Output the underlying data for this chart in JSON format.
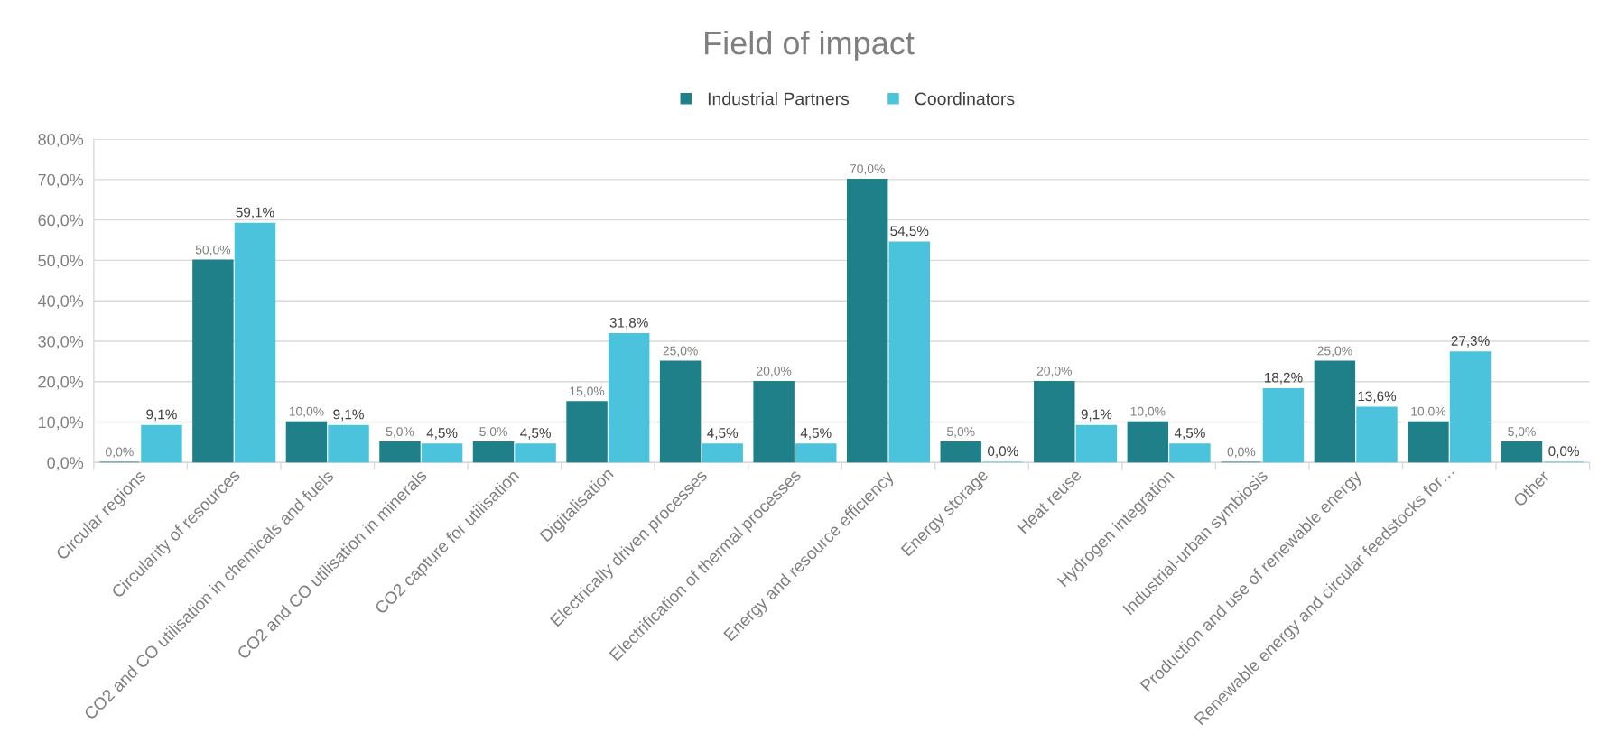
{
  "chart_data": {
    "type": "bar",
    "title": "Field of impact",
    "categories": [
      "Circular regions",
      "Circularity of resources",
      "CO2 and CO utilisation in chemicals and fuels",
      "CO2 and CO utilisation in minerals",
      "CO2 capture for utilisation",
      "Digitalisation",
      "Electrically driven processes",
      "Electrification of thermal processes",
      "Energy and resource efficiency",
      "Energy storage",
      "Heat reuse",
      "Hydrogen integration",
      "Industrial-urban symbiosis",
      "Production and use of renewable energy",
      "Renewable energy and circular feedstocks for…",
      "Other"
    ],
    "series": [
      {
        "name": "Industrial Partners",
        "color": "#1f8089",
        "values": [
          0.0,
          50.0,
          10.0,
          5.0,
          5.0,
          15.0,
          25.0,
          20.0,
          70.0,
          5.0,
          20.0,
          10.0,
          0.0,
          25.0,
          10.0,
          5.0
        ],
        "value_labels": [
          "0,0%",
          "50,0%",
          "10,0%",
          "5,0%",
          "5,0%",
          "15,0%",
          "25,0%",
          "20,0%",
          "70,0%",
          "5,0%",
          "20,0%",
          "10,0%",
          "0,0%",
          "25,0%",
          "10,0%",
          "5,0%"
        ]
      },
      {
        "name": "Coordinators",
        "color": "#4bc3dc",
        "values": [
          9.1,
          59.1,
          9.1,
          4.5,
          4.5,
          31.8,
          4.5,
          4.5,
          54.5,
          0.0,
          9.1,
          4.5,
          18.2,
          13.6,
          27.3,
          0.0
        ],
        "value_labels": [
          "9,1%",
          "59,1%",
          "9,1%",
          "4,5%",
          "4,5%",
          "31,8%",
          "4,5%",
          "4,5%",
          "54,5%",
          "0,0%",
          "9,1%",
          "4,5%",
          "18,2%",
          "13,6%",
          "27,3%",
          "0,0%"
        ]
      }
    ],
    "ylim": [
      0,
      80
    ],
    "yticks": [
      {
        "value": 0,
        "label": "0,0%"
      },
      {
        "value": 10,
        "label": "10,0%"
      },
      {
        "value": 20,
        "label": "20,0%"
      },
      {
        "value": 30,
        "label": "30,0%"
      },
      {
        "value": 40,
        "label": "40,0%"
      },
      {
        "value": 50,
        "label": "50,0%"
      },
      {
        "value": 60,
        "label": "60,0%"
      },
      {
        "value": 70,
        "label": "70,0%"
      },
      {
        "value": 80,
        "label": "80,0%"
      }
    ],
    "grid": "y",
    "legend": "top"
  }
}
